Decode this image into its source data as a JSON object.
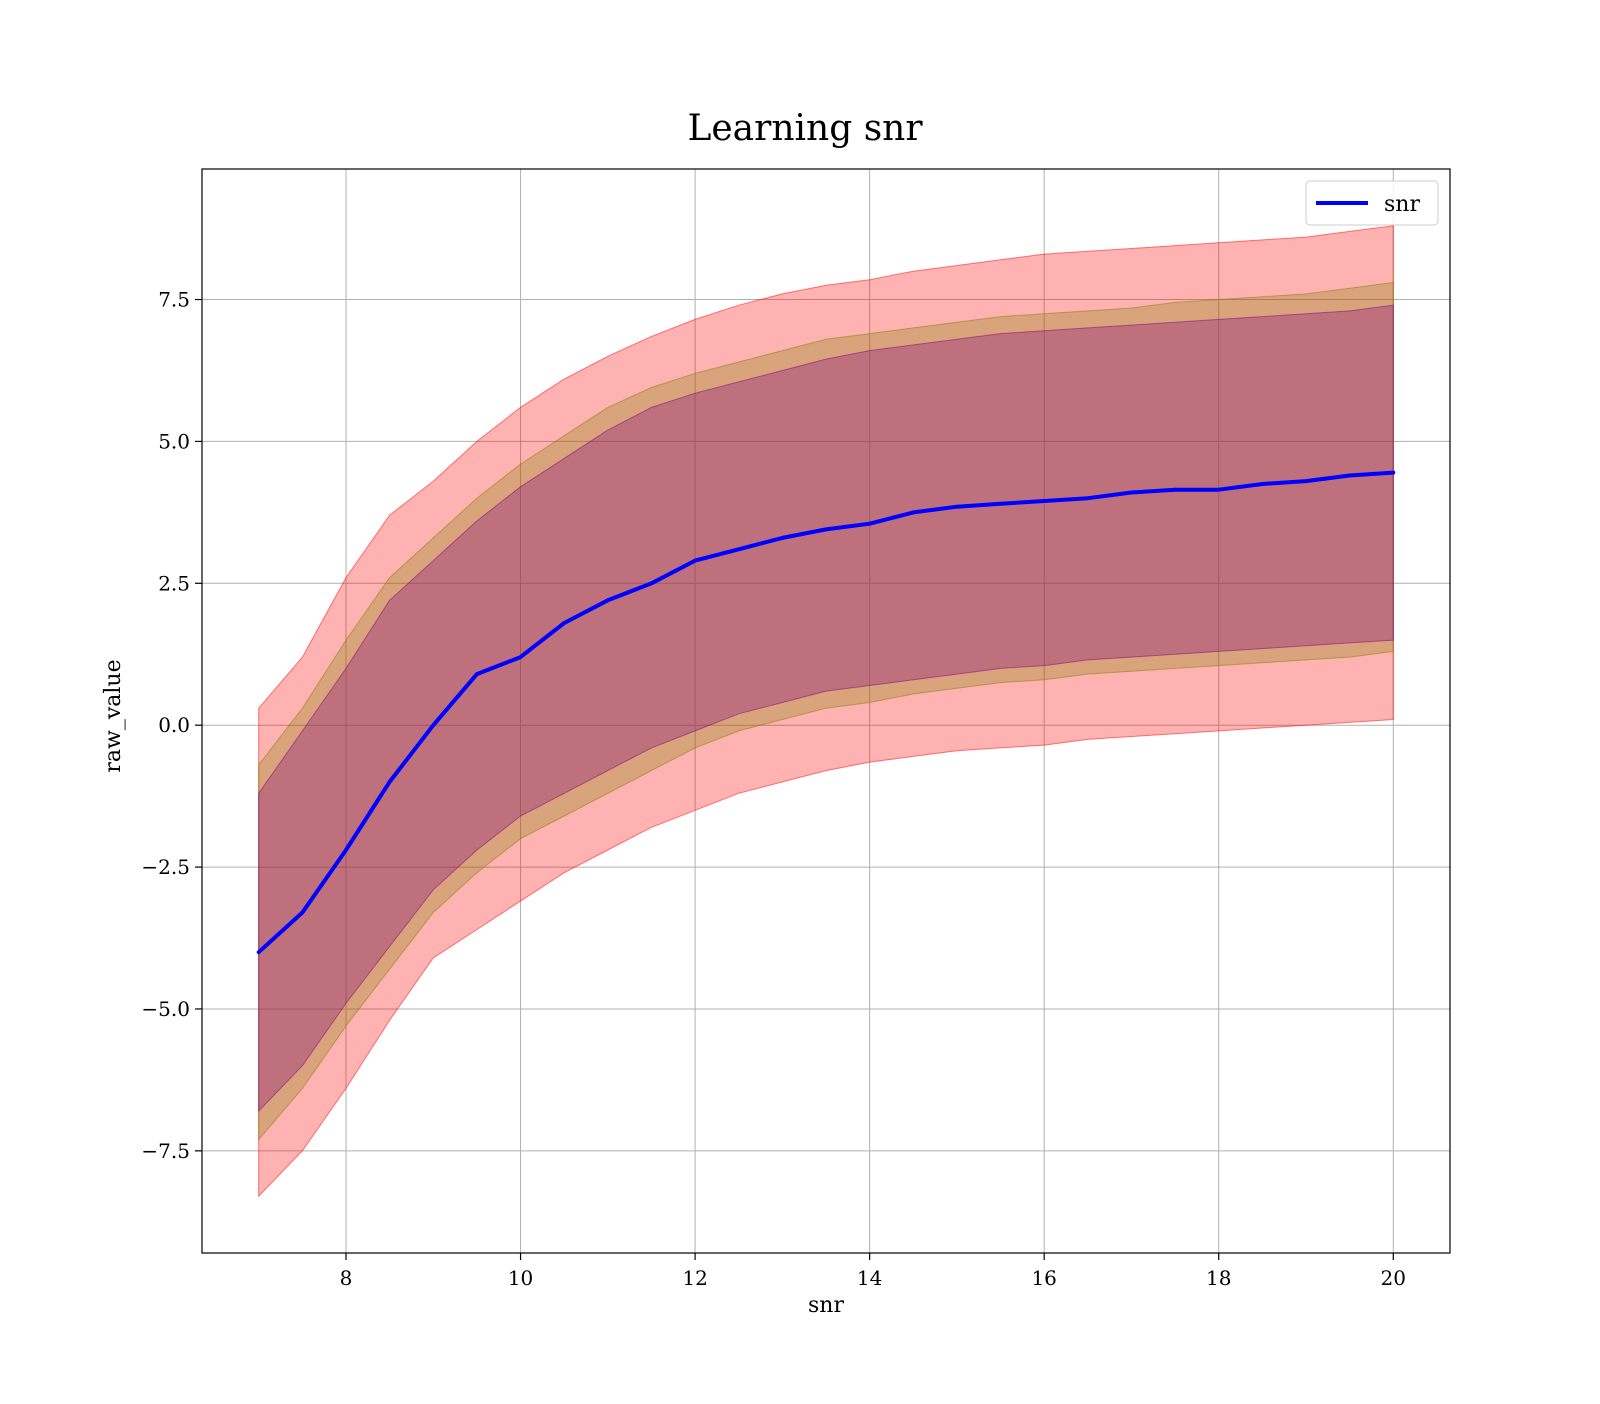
{
  "chart_data": {
    "type": "line",
    "title": "Learning snr",
    "xlabel": "snr",
    "ylabel": "raw_value",
    "xlim": [
      6.35,
      20.65
    ],
    "ylim": [
      -9.3,
      9.8
    ],
    "xticks": [
      8,
      10,
      12,
      14,
      16,
      18,
      20
    ],
    "xtick_labels": [
      "8",
      "10",
      "12",
      "14",
      "16",
      "18",
      "20"
    ],
    "yticks": [
      -7.5,
      -5.0,
      -2.5,
      0.0,
      2.5,
      5.0,
      7.5
    ],
    "ytick_labels": [
      "−7.5",
      "−5.0",
      "−2.5",
      "0.0",
      "2.5",
      "5.0",
      "7.5"
    ],
    "grid": true,
    "legend": {
      "placement": "top-right",
      "entries": [
        {
          "label": "snr",
          "color": "#0000ff"
        }
      ]
    },
    "x": [
      7.0,
      7.5,
      8.0,
      8.5,
      9.0,
      9.5,
      10.0,
      10.5,
      11.0,
      11.5,
      12.0,
      12.5,
      13.0,
      13.5,
      14.0,
      14.5,
      15.0,
      15.5,
      16.0,
      16.5,
      17.0,
      17.5,
      18.0,
      18.5,
      19.0,
      19.5,
      20.0
    ],
    "series": [
      {
        "name": "snr",
        "color": "#0000ff",
        "values": [
          -4.0,
          -3.3,
          -2.2,
          -1.0,
          0.0,
          0.9,
          1.2,
          1.8,
          2.2,
          2.5,
          2.9,
          3.1,
          3.3,
          3.45,
          3.55,
          3.75,
          3.85,
          3.9,
          3.95,
          4.0,
          4.1,
          4.15,
          4.15,
          4.25,
          4.3,
          4.4,
          4.45
        ]
      }
    ],
    "bands": [
      {
        "color": "#ff0000",
        "opacity": 0.3,
        "upper": [
          0.3,
          1.2,
          2.6,
          3.7,
          4.3,
          5.0,
          5.6,
          6.1,
          6.5,
          6.85,
          7.15,
          7.4,
          7.6,
          7.75,
          7.85,
          8.0,
          8.1,
          8.2,
          8.3,
          8.35,
          8.4,
          8.45,
          8.5,
          8.55,
          8.6,
          8.7,
          8.8
        ],
        "lower": [
          -8.3,
          -7.5,
          -6.4,
          -5.2,
          -4.1,
          -3.6,
          -3.1,
          -2.6,
          -2.2,
          -1.8,
          -1.5,
          -1.2,
          -1.0,
          -0.8,
          -0.65,
          -0.55,
          -0.45,
          -0.4,
          -0.35,
          -0.25,
          -0.2,
          -0.15,
          -0.1,
          -0.05,
          0.0,
          0.05,
          0.1
        ]
      },
      {
        "color": "#808000",
        "opacity": 0.3,
        "upper": [
          -0.7,
          0.3,
          1.5,
          2.6,
          3.3,
          4.0,
          4.6,
          5.1,
          5.6,
          5.95,
          6.2,
          6.4,
          6.6,
          6.8,
          6.9,
          7.0,
          7.1,
          7.2,
          7.25,
          7.3,
          7.35,
          7.45,
          7.5,
          7.55,
          7.6,
          7.7,
          7.8
        ],
        "lower": [
          -7.3,
          -6.4,
          -5.3,
          -4.3,
          -3.3,
          -2.6,
          -2.0,
          -1.6,
          -1.2,
          -0.8,
          -0.4,
          -0.1,
          0.1,
          0.3,
          0.4,
          0.55,
          0.65,
          0.75,
          0.8,
          0.9,
          0.95,
          1.0,
          1.05,
          1.1,
          1.15,
          1.2,
          1.3
        ]
      },
      {
        "color": "#800080",
        "opacity": 0.3,
        "upper": [
          -1.2,
          -0.1,
          1.0,
          2.2,
          2.9,
          3.6,
          4.2,
          4.7,
          5.2,
          5.6,
          5.85,
          6.05,
          6.25,
          6.45,
          6.6,
          6.7,
          6.8,
          6.9,
          6.95,
          7.0,
          7.05,
          7.1,
          7.15,
          7.2,
          7.25,
          7.3,
          7.4
        ],
        "lower": [
          -6.8,
          -6.0,
          -4.9,
          -3.9,
          -2.9,
          -2.2,
          -1.6,
          -1.2,
          -0.8,
          -0.4,
          -0.1,
          0.2,
          0.4,
          0.6,
          0.7,
          0.8,
          0.9,
          1.0,
          1.05,
          1.15,
          1.2,
          1.25,
          1.3,
          1.35,
          1.4,
          1.45,
          1.5
        ]
      }
    ]
  }
}
